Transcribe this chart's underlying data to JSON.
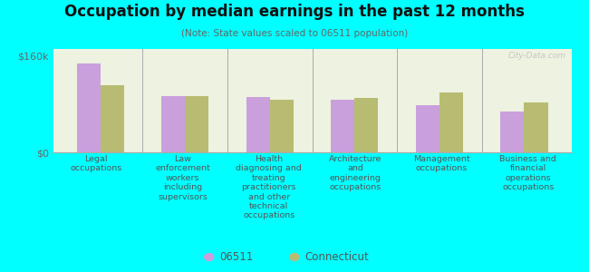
{
  "title": "Occupation by median earnings in the past 12 months",
  "subtitle": "(Note: State values scaled to 06511 population)",
  "background_color": "#00FFFF",
  "plot_bg_color": "#eef2e0",
  "categories": [
    "Legal\noccupations",
    "Law\nenforcement\nworkers\nincluding\nsupervisors",
    "Health\ndiagnosing and\ntreating\npractitioners\nand other\ntechnical\noccupations",
    "Architecture\nand\nengineering\noccupations",
    "Management\noccupations",
    "Business and\nfinancial\noperations\noccupations"
  ],
  "values_06511": [
    148000,
    94000,
    92000,
    88000,
    78000,
    68000
  ],
  "values_connecticut": [
    112000,
    93000,
    87000,
    90000,
    100000,
    83000
  ],
  "color_06511": "#c9a0dc",
  "color_connecticut": "#b8bc72",
  "ylim": [
    0,
    172000
  ],
  "yticks": [
    0,
    160000
  ],
  "ytick_labels": [
    "$0",
    "$160k"
  ],
  "legend_06511": "06511",
  "legend_connecticut": "Connecticut",
  "bar_width": 0.28,
  "watermark": "City-Data.com"
}
